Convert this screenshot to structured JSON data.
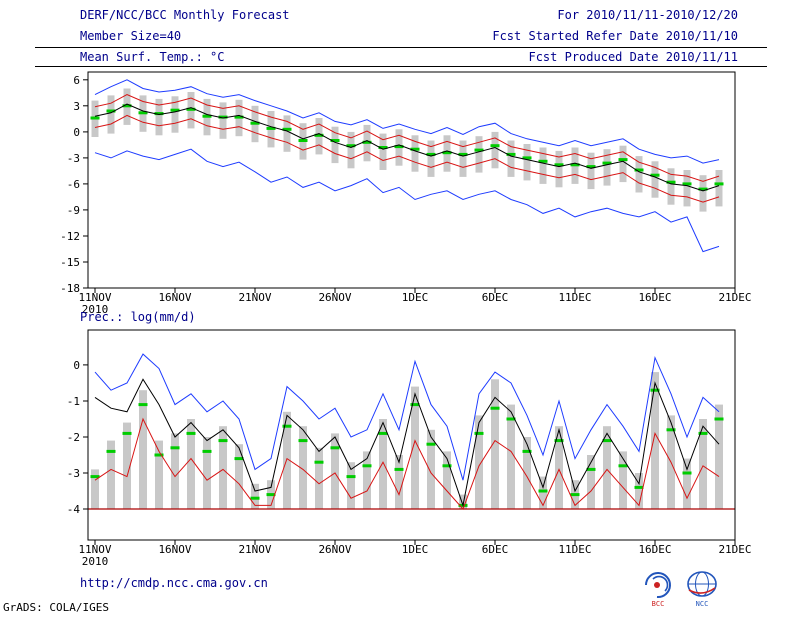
{
  "header": {
    "title": "DERF/NCC/BCC Monthly Forecast",
    "period": "For 2010/11/11-2010/12/20",
    "member_size": "Member Size=40",
    "refer_date": "Fcst Started Refer Date 2010/11/10",
    "temp_label": "Mean Surf. Temp.: °C",
    "produced_date": "Fcst Produced Date 2010/11/11"
  },
  "footer": {
    "url": "http://cmdp.ncc.cma.gov.cn",
    "credit": "GrADS: COLA/IGES",
    "bcc_label": "BCC",
    "ncc_label": "NCC"
  },
  "colors": {
    "header_text": "#00008b",
    "axis": "#000000",
    "max_min_line": "#1e3cff",
    "quartile_line": "#d81414",
    "mean_line": "#000000",
    "median_dash": "#00cc00",
    "spread_bar": "#c8c8c8",
    "floor_line": "#aa0000"
  },
  "chart_data": [
    {
      "type": "line",
      "name": "temperature",
      "title": "Mean Surf. Temp.: °C",
      "n_days": 40,
      "x_sub_label": "2010",
      "xticks": {
        "positions": [
          0,
          5,
          10,
          15,
          20,
          25,
          30,
          35,
          40
        ],
        "labels": [
          "11NOV",
          "16NOV",
          "21NOV",
          "26NOV",
          "1DEC",
          "6DEC",
          "11DEC",
          "16DEC",
          "21DEC"
        ]
      },
      "ylim": [
        -18,
        6.9
      ],
      "yticks": [
        6,
        3,
        0,
        -3,
        -6,
        -9,
        -12,
        -15,
        -18
      ],
      "series": [
        {
          "name": "ensemble-max",
          "color": "#1e3cff",
          "values": [
            4.3,
            5.2,
            6.0,
            5.0,
            4.6,
            4.8,
            5.2,
            4.4,
            4.0,
            4.3,
            3.6,
            3.0,
            2.4,
            1.6,
            2.2,
            1.2,
            0.8,
            1.4,
            0.4,
            0.9,
            0.3,
            -0.2,
            0.5,
            -0.3,
            0.6,
            1.0,
            -0.2,
            -0.8,
            -1.2,
            -1.6,
            -1.0,
            -1.6,
            -1.2,
            -0.8,
            -2.0,
            -2.6,
            -3.0,
            -2.8,
            -3.6,
            -3.2
          ]
        },
        {
          "name": "upper-quartile",
          "color": "#d81414",
          "values": [
            2.9,
            3.3,
            4.3,
            3.5,
            3.1,
            3.4,
            3.9,
            3.1,
            2.7,
            3.0,
            2.3,
            1.7,
            1.2,
            0.3,
            0.9,
            -0.1,
            -0.7,
            0.1,
            -0.9,
            -0.4,
            -1.1,
            -1.7,
            -1.1,
            -1.7,
            -1.2,
            -0.7,
            -1.7,
            -2.1,
            -2.5,
            -2.9,
            -2.5,
            -3.1,
            -2.7,
            -2.3,
            -3.5,
            -4.1,
            -4.9,
            -5.1,
            -5.7,
            -5.1
          ]
        },
        {
          "name": "ensemble-mean",
          "color": "#000000",
          "values": [
            1.8,
            2.2,
            3.2,
            2.4,
            2.0,
            2.3,
            2.8,
            2.0,
            1.6,
            1.9,
            1.2,
            0.6,
            0.1,
            -0.8,
            -0.2,
            -1.2,
            -1.8,
            -1.0,
            -2.0,
            -1.5,
            -2.2,
            -2.8,
            -2.2,
            -2.8,
            -2.3,
            -1.8,
            -2.8,
            -3.2,
            -3.6,
            -4.0,
            -3.6,
            -4.2,
            -3.8,
            -3.4,
            -4.6,
            -5.2,
            -6.0,
            -6.2,
            -6.8,
            -6.2
          ]
        },
        {
          "name": "lower-quartile",
          "color": "#d81414",
          "values": [
            0.5,
            0.9,
            1.9,
            1.1,
            0.7,
            1.0,
            1.5,
            0.7,
            0.3,
            0.6,
            -0.1,
            -0.7,
            -1.2,
            -2.1,
            -1.5,
            -2.5,
            -3.1,
            -2.3,
            -3.3,
            -2.8,
            -3.5,
            -4.1,
            -3.5,
            -4.1,
            -3.6,
            -3.1,
            -4.1,
            -4.5,
            -4.9,
            -5.3,
            -4.9,
            -5.5,
            -5.1,
            -4.7,
            -5.9,
            -6.5,
            -7.3,
            -7.5,
            -8.1,
            -7.5
          ]
        },
        {
          "name": "ensemble-min",
          "color": "#1e3cff",
          "values": [
            -2.4,
            -3.0,
            -2.2,
            -2.8,
            -3.2,
            -2.6,
            -2.0,
            -3.4,
            -4.0,
            -3.5,
            -4.6,
            -5.8,
            -5.2,
            -6.4,
            -5.8,
            -6.8,
            -6.2,
            -5.4,
            -7.0,
            -6.4,
            -7.8,
            -7.2,
            -6.8,
            -7.8,
            -7.2,
            -6.8,
            -7.8,
            -8.4,
            -9.4,
            -8.8,
            -9.8,
            -9.2,
            -8.8,
            -9.4,
            -9.8,
            -9.2,
            -10.4,
            -9.8,
            -13.8,
            -13.2
          ]
        }
      ],
      "median_dashes": {
        "color": "#00cc00",
        "values": [
          1.6,
          2.4,
          3.0,
          2.2,
          2.1,
          2.5,
          2.6,
          1.8,
          1.7,
          1.7,
          1.0,
          0.4,
          0.3,
          -1.0,
          -0.4,
          -1.0,
          -1.6,
          -1.2,
          -1.8,
          -1.7,
          -2.0,
          -2.6,
          -2.4,
          -2.6,
          -2.1,
          -1.6,
          -2.6,
          -3.0,
          -3.4,
          -3.8,
          -3.8,
          -4.0,
          -3.6,
          -3.2,
          -4.4,
          -5.0,
          -5.8,
          -6.0,
          -6.6,
          -6.0
        ]
      },
      "bars": {
        "color": "#c8c8c8",
        "top": [
          3.6,
          4.2,
          5.0,
          4.2,
          3.8,
          4.1,
          4.6,
          3.8,
          3.4,
          3.7,
          3.0,
          2.4,
          1.9,
          1.0,
          1.6,
          0.6,
          0.0,
          0.8,
          -0.2,
          0.3,
          -0.4,
          -1.0,
          -0.4,
          -1.0,
          -0.5,
          0.0,
          -1.0,
          -1.4,
          -1.8,
          -2.2,
          -1.8,
          -2.4,
          -2.0,
          -1.6,
          -2.8,
          -3.4,
          -4.2,
          -4.4,
          -5.0,
          -4.4
        ],
        "bottom": [
          -0.6,
          -0.2,
          0.8,
          0.0,
          -0.4,
          -0.1,
          0.4,
          -0.4,
          -0.8,
          -0.5,
          -1.2,
          -1.8,
          -2.3,
          -3.2,
          -2.6,
          -3.6,
          -4.2,
          -3.4,
          -4.4,
          -3.9,
          -4.6,
          -5.2,
          -4.6,
          -5.2,
          -4.7,
          -4.2,
          -5.2,
          -5.6,
          -6.0,
          -6.4,
          -6.0,
          -6.6,
          -6.2,
          -5.8,
          -7.0,
          -7.6,
          -8.4,
          -8.6,
          -9.2,
          -8.6
        ]
      }
    },
    {
      "type": "line",
      "name": "precipitation",
      "title": "Prec.: log(mm/d)",
      "n_days": 40,
      "x_sub_label": "2010",
      "xticks": {
        "positions": [
          0,
          5,
          10,
          15,
          20,
          25,
          30,
          35,
          40
        ],
        "labels": [
          "11NOV",
          "16NOV",
          "21NOV",
          "26NOV",
          "1DEC",
          "6DEC",
          "11DEC",
          "16DEC",
          "21DEC"
        ]
      },
      "ylim": [
        -4.86,
        0.97
      ],
      "yticks": [
        0,
        -1,
        -2,
        -3,
        -4
      ],
      "floor_line": {
        "value": -4,
        "color": "#aa0000"
      },
      "series": [
        {
          "name": "ensemble-max",
          "color": "#1e3cff",
          "values": [
            -0.2,
            -0.7,
            -0.5,
            0.3,
            -0.1,
            -1.1,
            -0.8,
            -1.3,
            -1.0,
            -1.5,
            -2.9,
            -2.6,
            -0.6,
            -1.0,
            -1.5,
            -1.2,
            -2.0,
            -1.8,
            -0.8,
            -1.8,
            0.1,
            -1.1,
            -1.7,
            -3.2,
            -0.8,
            -0.2,
            -0.5,
            -1.4,
            -2.5,
            -1.0,
            -2.6,
            -1.8,
            -1.1,
            -1.7,
            -2.4,
            0.2,
            -0.8,
            -2.0,
            -0.9,
            -1.3
          ]
        },
        {
          "name": "ensemble-mean",
          "color": "#000000",
          "values": [
            -0.9,
            -1.2,
            -1.3,
            -0.4,
            -1.1,
            -2.0,
            -1.6,
            -2.1,
            -1.8,
            -2.3,
            -3.5,
            -3.4,
            -1.4,
            -1.8,
            -2.4,
            -2.0,
            -2.9,
            -2.6,
            -1.6,
            -2.7,
            -0.8,
            -2.0,
            -2.6,
            -3.9,
            -1.6,
            -0.9,
            -1.3,
            -2.2,
            -3.4,
            -1.8,
            -3.5,
            -2.7,
            -1.9,
            -2.6,
            -3.3,
            -0.5,
            -1.6,
            -2.9,
            -1.7,
            -2.2
          ]
        },
        {
          "name": "lower-quartile",
          "color": "#d81414",
          "values": [
            -3.2,
            -2.9,
            -3.1,
            -1.5,
            -2.4,
            -3.1,
            -2.6,
            -3.2,
            -2.9,
            -3.3,
            -3.9,
            -3.9,
            -2.6,
            -2.9,
            -3.3,
            -3.0,
            -3.7,
            -3.5,
            -2.7,
            -3.6,
            -2.1,
            -3.0,
            -3.5,
            -4.0,
            -2.8,
            -2.1,
            -2.4,
            -3.1,
            -3.9,
            -2.9,
            -3.9,
            -3.5,
            -2.9,
            -3.4,
            -3.9,
            -1.9,
            -2.7,
            -3.7,
            -2.8,
            -3.1
          ]
        }
      ],
      "median_dashes": {
        "color": "#00cc00",
        "values": [
          -3.1,
          -2.4,
          -1.9,
          -1.1,
          -2.5,
          -2.3,
          -1.9,
          -2.4,
          -2.1,
          -2.6,
          -3.7,
          -3.6,
          -1.7,
          -2.1,
          -2.7,
          -2.3,
          -3.1,
          -2.8,
          -1.9,
          -2.9,
          -1.1,
          -2.2,
          -2.8,
          -3.9,
          -1.9,
          -1.2,
          -1.5,
          -2.4,
          -3.5,
          -2.1,
          -3.6,
          -2.9,
          -2.1,
          -2.8,
          -3.4,
          -0.7,
          -1.8,
          -3.0,
          -1.9,
          -1.5
        ]
      },
      "bars": {
        "color": "#c8c8c8",
        "top": [
          -2.9,
          -2.1,
          -1.6,
          -0.7,
          -2.1,
          -1.9,
          -1.5,
          -2.0,
          -1.7,
          -2.2,
          -3.3,
          -3.2,
          -1.3,
          -1.7,
          -2.3,
          -1.9,
          -2.7,
          -2.4,
          -1.5,
          -2.5,
          -0.6,
          -1.8,
          -2.4,
          -3.6,
          -1.4,
          -0.4,
          -1.1,
          -2.0,
          -3.1,
          -1.7,
          -3.2,
          -2.5,
          -1.7,
          -2.4,
          -3.0,
          -0.2,
          -1.4,
          -2.6,
          -1.5,
          -1.1
        ],
        "bottom": -4.0
      }
    }
  ]
}
